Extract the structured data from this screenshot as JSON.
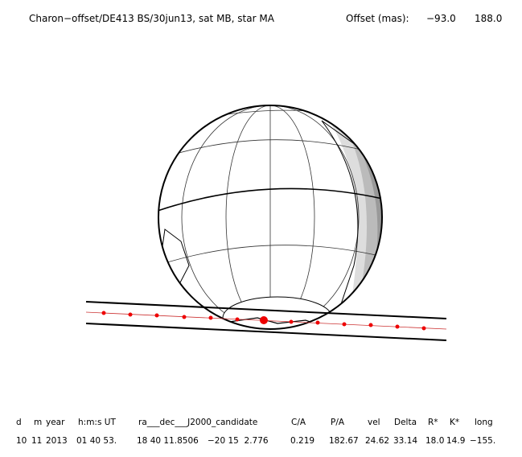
{
  "header": {
    "title": "Charon−offset/DE413 BS/30jun13, sat MB, star MA",
    "offset_label": "Offset (mas):",
    "offset_x": "−93.0",
    "offset_y": "188.0"
  },
  "table": {
    "columns": [
      "d",
      "m",
      "year",
      "h:m:s UT",
      "ra___dec___J2000_candidate",
      "C/A",
      "P/A",
      "vel",
      "Delta",
      "R*",
      "K*",
      "long"
    ],
    "row": [
      "10",
      "11",
      "2013",
      "01 40 53.",
      "18 40 11.8506",
      "−20 15  2.776",
      "0.219",
      "182.67",
      "24.62",
      "33.14",
      "18.0",
      "14.9",
      "−155."
    ]
  }
}
